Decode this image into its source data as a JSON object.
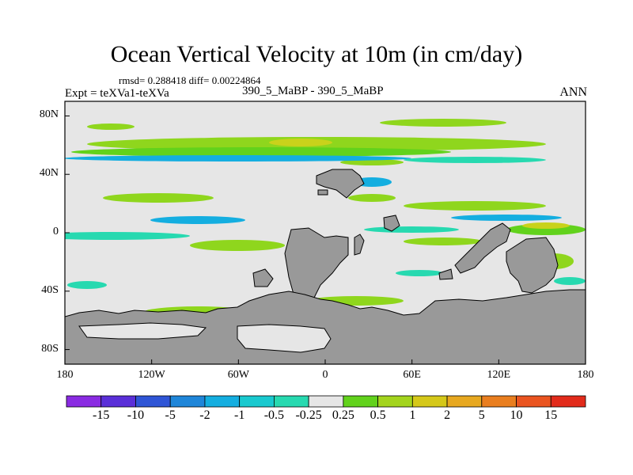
{
  "chart_data": {
    "type": "heatmap",
    "title": "Ocean Vertical Velocity at 10m (in cm/day)",
    "stats_label": "rmsd= 0.288418 diff= 0.00224864",
    "left_string": "Expt = teXVa1-teXVa",
    "center_string": "390_5_MaBP - 390_5_MaBP",
    "right_string": "ANN",
    "x_axis": {
      "range": [
        -180,
        180
      ],
      "tick_labels": [
        "180",
        "120W",
        "60W",
        "0",
        "60E",
        "120E",
        "180"
      ]
    },
    "y_axis": {
      "range": [
        -90,
        90
      ],
      "tick_labels": [
        "80N",
        "40N",
        "0",
        "40S",
        "80S"
      ]
    },
    "colorbar": {
      "levels": [
        "-15",
        "-10",
        "-5",
        "-2",
        "-1",
        "-0.5",
        "-0.25",
        "0.25",
        "0.5",
        "1",
        "2",
        "5",
        "10",
        "15"
      ],
      "colors": [
        "#8a2be2",
        "#5a2fd8",
        "#2f55d6",
        "#1f86d9",
        "#14aee0",
        "#19c9cf",
        "#27d9b0",
        "#e6e6e6",
        "#62d21c",
        "#a3d41d",
        "#d5c819",
        "#e7a820",
        "#e97e1f",
        "#ea5420",
        "#e22b1b"
      ]
    },
    "land_color": "#999999",
    "no_change_color": "#e6e6e6"
  }
}
